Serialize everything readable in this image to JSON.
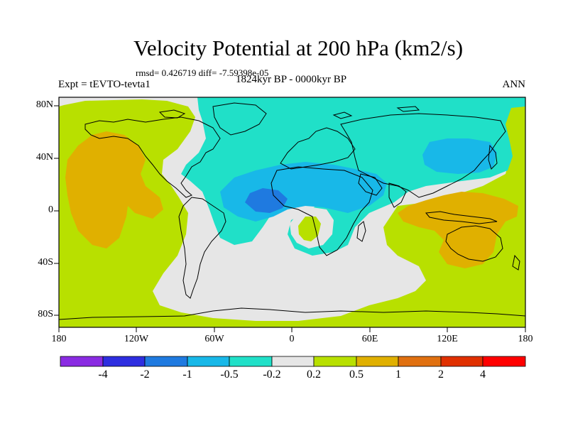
{
  "title": "Velocity Potential at 200 hPa (km2/s)",
  "stats": "rmsd= 0.426719 diff= -7.59398e-05",
  "expt": "Expt = tEVTO-tevta1",
  "period": "1824kyr BP - 0000kyr BP",
  "season": "ANN",
  "y_ticks": [
    "80N",
    "40N",
    "0",
    "40S",
    "80S"
  ],
  "x_ticks": [
    "180",
    "120W",
    "60W",
    "0",
    "60E",
    "120E",
    "180"
  ],
  "colorbar": {
    "labels": [
      "-4",
      "-2",
      "-1",
      "-0.5",
      "-0.2",
      "0.2",
      "0.5",
      "1",
      "2",
      "4"
    ],
    "colors": [
      "#8a2be2",
      "#2e2ee0",
      "#1f7ae0",
      "#18b8e8",
      "#20e0c8",
      "#e6e6e6",
      "#b8e000",
      "#e0b000",
      "#e07010",
      "#e03000",
      "#ff0000"
    ]
  },
  "palette": {
    "grey": "#e6e6e6",
    "green": "#b8e000",
    "orange": "#e0b000",
    "teal": "#20e0c8",
    "cyan": "#18b8e8",
    "blue": "#1f7ae0",
    "land_outline": "#000000"
  }
}
